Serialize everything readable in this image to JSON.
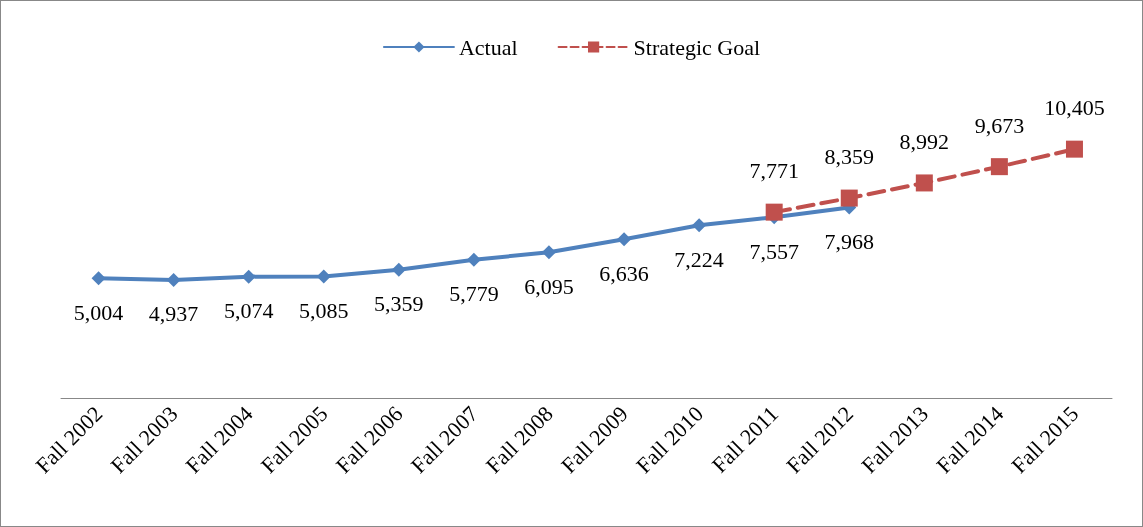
{
  "chart_data": {
    "type": "line",
    "categories": [
      "Fall 2002",
      "Fall 2003",
      "Fall 2004",
      "Fall 2005",
      "Fall 2006",
      "Fall 2007",
      "Fall 2008",
      "Fall 2009",
      "Fall 2010",
      "Fall 2011",
      "Fall 2012",
      "Fall 2013",
      "Fall 2014",
      "Fall 2015"
    ],
    "series": [
      {
        "name": "Actual",
        "color": "#4f81bd",
        "marker": "diamond",
        "line_style": "solid",
        "values": [
          5004,
          4937,
          5074,
          5085,
          5359,
          5779,
          6095,
          6636,
          7224,
          7557,
          7968,
          null,
          null,
          null
        ],
        "value_labels": [
          "5,004",
          "4,937",
          "5,074",
          "5,085",
          "5,359",
          "5,779",
          "6,095",
          "6,636",
          "7,224",
          "7,557",
          "7,968",
          null,
          null,
          null
        ]
      },
      {
        "name": "Strategic Goal",
        "color": "#c0504d",
        "marker": "square",
        "line_style": "dashed",
        "values": [
          null,
          null,
          null,
          null,
          null,
          null,
          null,
          null,
          null,
          7771,
          8359,
          8992,
          9673,
          10405
        ],
        "value_labels": [
          null,
          null,
          null,
          null,
          null,
          null,
          null,
          null,
          null,
          "7,771",
          "8,359",
          "8,992",
          "9,673",
          "10,405"
        ]
      }
    ],
    "legend": "top"
  }
}
